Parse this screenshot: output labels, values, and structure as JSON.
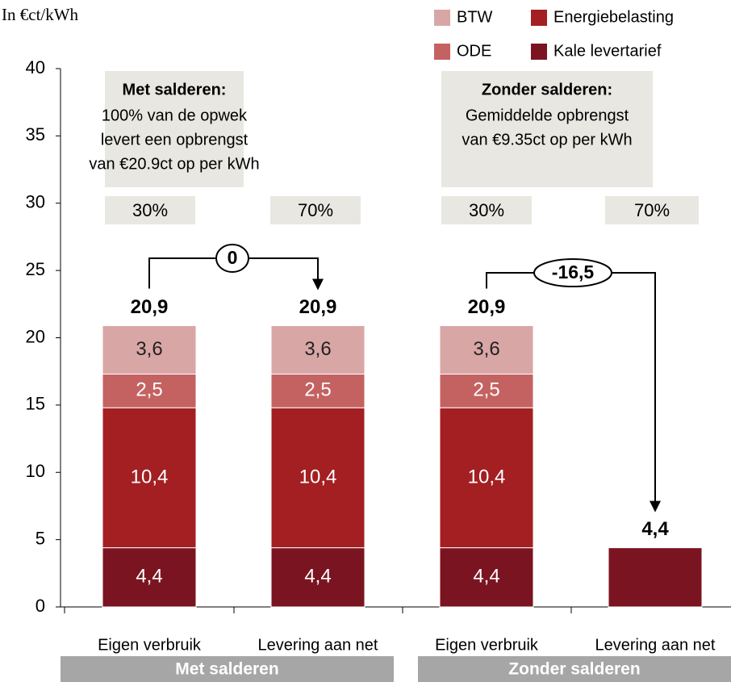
{
  "chart_data": {
    "type": "stacked_bar",
    "y_label": "In €ct/kWh",
    "categories": [
      "Eigen verbruik",
      "Levering aan net",
      "Eigen verbruik",
      "Levering aan net"
    ],
    "groups": [
      "Met salderen",
      "Zonder salderen"
    ],
    "series": [
      {
        "name": "Kale levertarief",
        "color": "#7b1421",
        "values": [
          4.4,
          4.4,
          4.4,
          4.4
        ],
        "value_labels": [
          "4,4",
          "4,4",
          "4,4",
          null
        ]
      },
      {
        "name": "Energiebelasting",
        "color": "#a31f22",
        "values": [
          10.4,
          10.4,
          10.4,
          null
        ],
        "value_labels": [
          "10,4",
          "10,4",
          "10,4",
          null
        ]
      },
      {
        "name": "ODE",
        "color": "#c46262",
        "values": [
          2.5,
          2.5,
          2.5,
          null
        ],
        "value_labels": [
          "2,5",
          "2,5",
          "2,5",
          null
        ]
      },
      {
        "name": "BTW",
        "color": "#d9a6a6",
        "values": [
          3.6,
          3.6,
          3.6,
          null
        ],
        "value_labels": [
          "3,6",
          "3,6",
          "3,6",
          null
        ]
      }
    ],
    "totals": [
      20.9,
      20.9,
      20.9,
      4.4
    ],
    "total_labels": [
      "20,9",
      "20,9",
      "20,9",
      "4,4"
    ],
    "differences": [
      0,
      -16.5
    ],
    "difference_labels": [
      "0",
      "-16,5"
    ],
    "annotations": [
      {
        "title": "Met salderen:",
        "lines": [
          "100% van de opwek",
          "levert een opbrengst",
          "van €20.9ct op per kWh"
        ],
        "shares": [
          "30%",
          "70%"
        ]
      },
      {
        "title": "Zonder salderen:",
        "lines": [
          "Gemiddelde opbrengst",
          "van €9.35ct op per kWh"
        ],
        "shares": [
          "30%",
          "70%"
        ]
      }
    ],
    "ylim": [
      0,
      40
    ],
    "yticks": [
      0,
      5,
      10,
      15,
      20,
      25,
      30,
      35,
      40
    ]
  }
}
